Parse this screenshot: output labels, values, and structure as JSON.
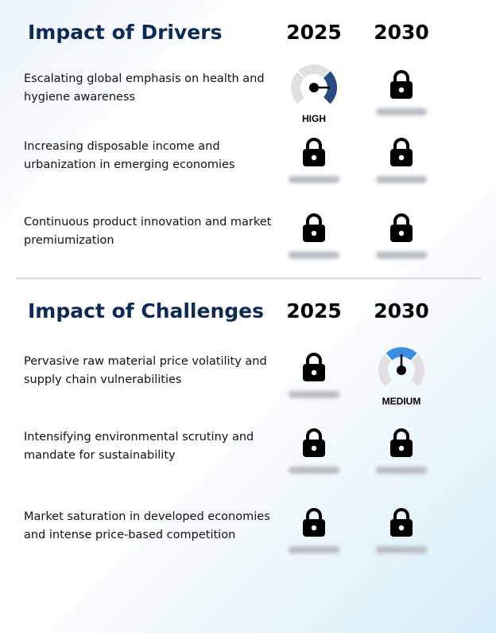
{
  "sections": [
    {
      "title": "Impact of Drivers",
      "years": [
        "2025",
        "2030"
      ],
      "rows": [
        {
          "label": "Escalating global emphasis on health and hygiene awareness",
          "cells": [
            {
              "type": "gauge",
              "level": "HIGH",
              "color": "#2a4a82"
            },
            {
              "type": "locked"
            }
          ]
        },
        {
          "label": "Increasing disposable income and urbanization in emerging economies",
          "cells": [
            {
              "type": "locked"
            },
            {
              "type": "locked"
            }
          ]
        },
        {
          "label": "Continuous product innovation and market premiumization",
          "cells": [
            {
              "type": "locked"
            },
            {
              "type": "locked"
            }
          ]
        }
      ]
    },
    {
      "title": "Impact of Challenges",
      "years": [
        "2025",
        "2030"
      ],
      "rows": [
        {
          "label": "Pervasive raw material price volatility and supply chain vulnerabilities",
          "cells": [
            {
              "type": "locked"
            },
            {
              "type": "gauge",
              "level": "MEDIUM",
              "color": "#3a8ee0"
            }
          ]
        },
        {
          "label": "Intensifying environmental scrutiny and mandate for sustainability",
          "cells": [
            {
              "type": "locked"
            },
            {
              "type": "locked"
            }
          ]
        },
        {
          "label": "Market saturation in developed economies and intense price-based competition",
          "cells": [
            {
              "type": "locked"
            },
            {
              "type": "locked"
            }
          ]
        }
      ]
    }
  ],
  "icons": {
    "locked": "lock-icon",
    "gauge": "gauge-icon"
  }
}
